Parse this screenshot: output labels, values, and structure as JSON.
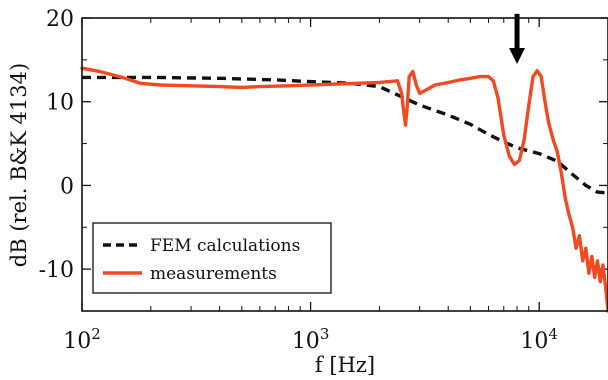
{
  "chart_data": {
    "type": "line",
    "xlabel": "f [Hz]",
    "ylabel": "dB (rel. B&K 4134)",
    "x_scale": "log",
    "xlim": [
      100,
      20000
    ],
    "ylim": [
      -15,
      20
    ],
    "x_ticks": [
      {
        "value": 100,
        "base": "10",
        "exp": "2"
      },
      {
        "value": 1000,
        "base": "10",
        "exp": "3"
      },
      {
        "value": 10000,
        "base": "10",
        "exp": "4"
      }
    ],
    "y_ticks": [
      -10,
      0,
      10,
      20
    ],
    "grid": false,
    "legend_position": "bottom-left",
    "series": [
      {
        "name": "FEM calculations",
        "color": "#111111",
        "dash": "dashed",
        "points": [
          [
            100,
            12.9
          ],
          [
            200,
            12.9
          ],
          [
            400,
            12.8
          ],
          [
            700,
            12.6
          ],
          [
            1000,
            12.4
          ],
          [
            1500,
            12.2
          ],
          [
            2000,
            11.8
          ],
          [
            2500,
            10.6
          ],
          [
            3000,
            9.6
          ],
          [
            4000,
            8.4
          ],
          [
            5000,
            7.3
          ],
          [
            6000,
            6.1
          ],
          [
            7000,
            5.2
          ],
          [
            8000,
            4.5
          ],
          [
            10000,
            3.8
          ],
          [
            12000,
            2.9
          ],
          [
            14000,
            1.3
          ],
          [
            16000,
            0.0
          ],
          [
            18000,
            -0.8
          ],
          [
            20000,
            -0.9
          ]
        ]
      },
      {
        "name": "measurements",
        "color": "#f04a22",
        "dash": "solid",
        "points": [
          [
            100,
            14.0
          ],
          [
            120,
            13.6
          ],
          [
            150,
            12.9
          ],
          [
            180,
            12.2
          ],
          [
            220,
            12.0
          ],
          [
            300,
            11.9
          ],
          [
            400,
            11.8
          ],
          [
            500,
            11.7
          ],
          [
            600,
            11.8
          ],
          [
            800,
            11.9
          ],
          [
            1000,
            12.0
          ],
          [
            1300,
            12.1
          ],
          [
            1600,
            12.2
          ],
          [
            2000,
            12.3
          ],
          [
            2400,
            12.5
          ],
          [
            2500,
            11.0
          ],
          [
            2550,
            9.0
          ],
          [
            2600,
            7.2
          ],
          [
            2650,
            9.5
          ],
          [
            2700,
            13.0
          ],
          [
            2800,
            13.6
          ],
          [
            2900,
            12.0
          ],
          [
            3000,
            11.0
          ],
          [
            3200,
            11.4
          ],
          [
            3500,
            12.0
          ],
          [
            4000,
            12.3
          ],
          [
            4500,
            12.6
          ],
          [
            5000,
            12.8
          ],
          [
            5500,
            13.0
          ],
          [
            6000,
            13.0
          ],
          [
            6300,
            12.5
          ],
          [
            6600,
            10.5
          ],
          [
            7000,
            6.0
          ],
          [
            7400,
            3.5
          ],
          [
            7800,
            2.5
          ],
          [
            8200,
            3.0
          ],
          [
            8600,
            5.5
          ],
          [
            9000,
            9.5
          ],
          [
            9400,
            13.0
          ],
          [
            9800,
            13.7
          ],
          [
            10200,
            13.0
          ],
          [
            10600,
            10.0
          ],
          [
            11000,
            7.5
          ],
          [
            11500,
            5.5
          ],
          [
            12000,
            4.0
          ],
          [
            12500,
            1.5
          ],
          [
            13000,
            -1.5
          ],
          [
            13500,
            -3.5
          ],
          [
            14000,
            -5.0
          ],
          [
            14500,
            -7.5
          ],
          [
            15000,
            -6.0
          ],
          [
            15500,
            -9.0
          ],
          [
            16000,
            -7.5
          ],
          [
            16500,
            -10.5
          ],
          [
            17000,
            -8.5
          ],
          [
            17500,
            -11.0
          ],
          [
            18000,
            -9.0
          ],
          [
            18500,
            -11.5
          ],
          [
            19000,
            -9.5
          ],
          [
            19500,
            -12.0
          ],
          [
            20000,
            -15.0
          ]
        ]
      }
    ],
    "annotation": {
      "type": "arrow",
      "x": 8000,
      "y_from": 20.5,
      "y_to": 14.5,
      "color": "#000000"
    }
  }
}
